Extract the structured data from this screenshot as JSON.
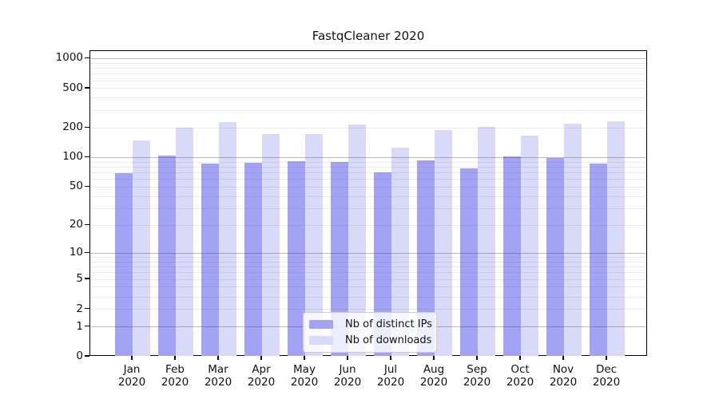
{
  "title": "FastqCleaner 2020",
  "colors": {
    "ips": "#a3a3f5",
    "downloads": "#d9d9f8",
    "grid_major": "rgba(60,60,60,0.35)",
    "grid_minor": "rgba(60,60,60,0.10)",
    "spine": "#000000",
    "legend_border": "#cccccc"
  },
  "legend": {
    "items": [
      {
        "label": "Nb of distinct IPs",
        "series": "ips"
      },
      {
        "label": "Nb of downloads",
        "series": "downloads"
      }
    ]
  },
  "y_axis": {
    "tick_values": [
      0,
      1,
      2,
      5,
      10,
      20,
      50,
      100,
      200,
      500,
      1000
    ],
    "tick_labels": [
      "0",
      "1",
      "2",
      "5",
      "10",
      "20",
      "50",
      "100",
      "200",
      "500",
      "1000"
    ],
    "grid_major_values": [
      1,
      10,
      100,
      1000
    ],
    "grid_minor_values": [
      2,
      3,
      4,
      5,
      6,
      7,
      8,
      9,
      20,
      30,
      40,
      50,
      60,
      70,
      80,
      90,
      200,
      300,
      400,
      500,
      600,
      700,
      800,
      900
    ]
  },
  "x_axis": {
    "categories": [
      "Jan",
      "Feb",
      "Mar",
      "Apr",
      "May",
      "Jun",
      "Jul",
      "Aug",
      "Sep",
      "Oct",
      "Nov",
      "Dec"
    ],
    "year_label": "2020"
  },
  "chart_data": {
    "type": "bar",
    "title": "FastqCleaner 2020",
    "categories": [
      "Jan 2020",
      "Feb 2020",
      "Mar 2020",
      "Apr 2020",
      "May 2020",
      "Jun 2020",
      "Jul 2020",
      "Aug 2020",
      "Sep 2020",
      "Oct 2020",
      "Nov 2020",
      "Dec 2020"
    ],
    "series": [
      {
        "name": "Nb of distinct IPs",
        "color": "#a3a3f5",
        "values": [
          70,
          105,
          87,
          88,
          92,
          91,
          71,
          93,
          78,
          103,
          99,
          87
        ]
      },
      {
        "name": "Nb of downloads",
        "color": "#d9d9f8",
        "values": [
          149,
          201,
          229,
          173,
          174,
          217,
          127,
          190,
          206,
          168,
          221,
          232
        ]
      }
    ],
    "yscale": "log1p",
    "yticks": [
      0,
      1,
      2,
      5,
      10,
      20,
      50,
      100,
      200,
      500,
      1000
    ],
    "ylim": [
      0,
      1180
    ],
    "grid": true,
    "legend_position": "lower center inside"
  }
}
